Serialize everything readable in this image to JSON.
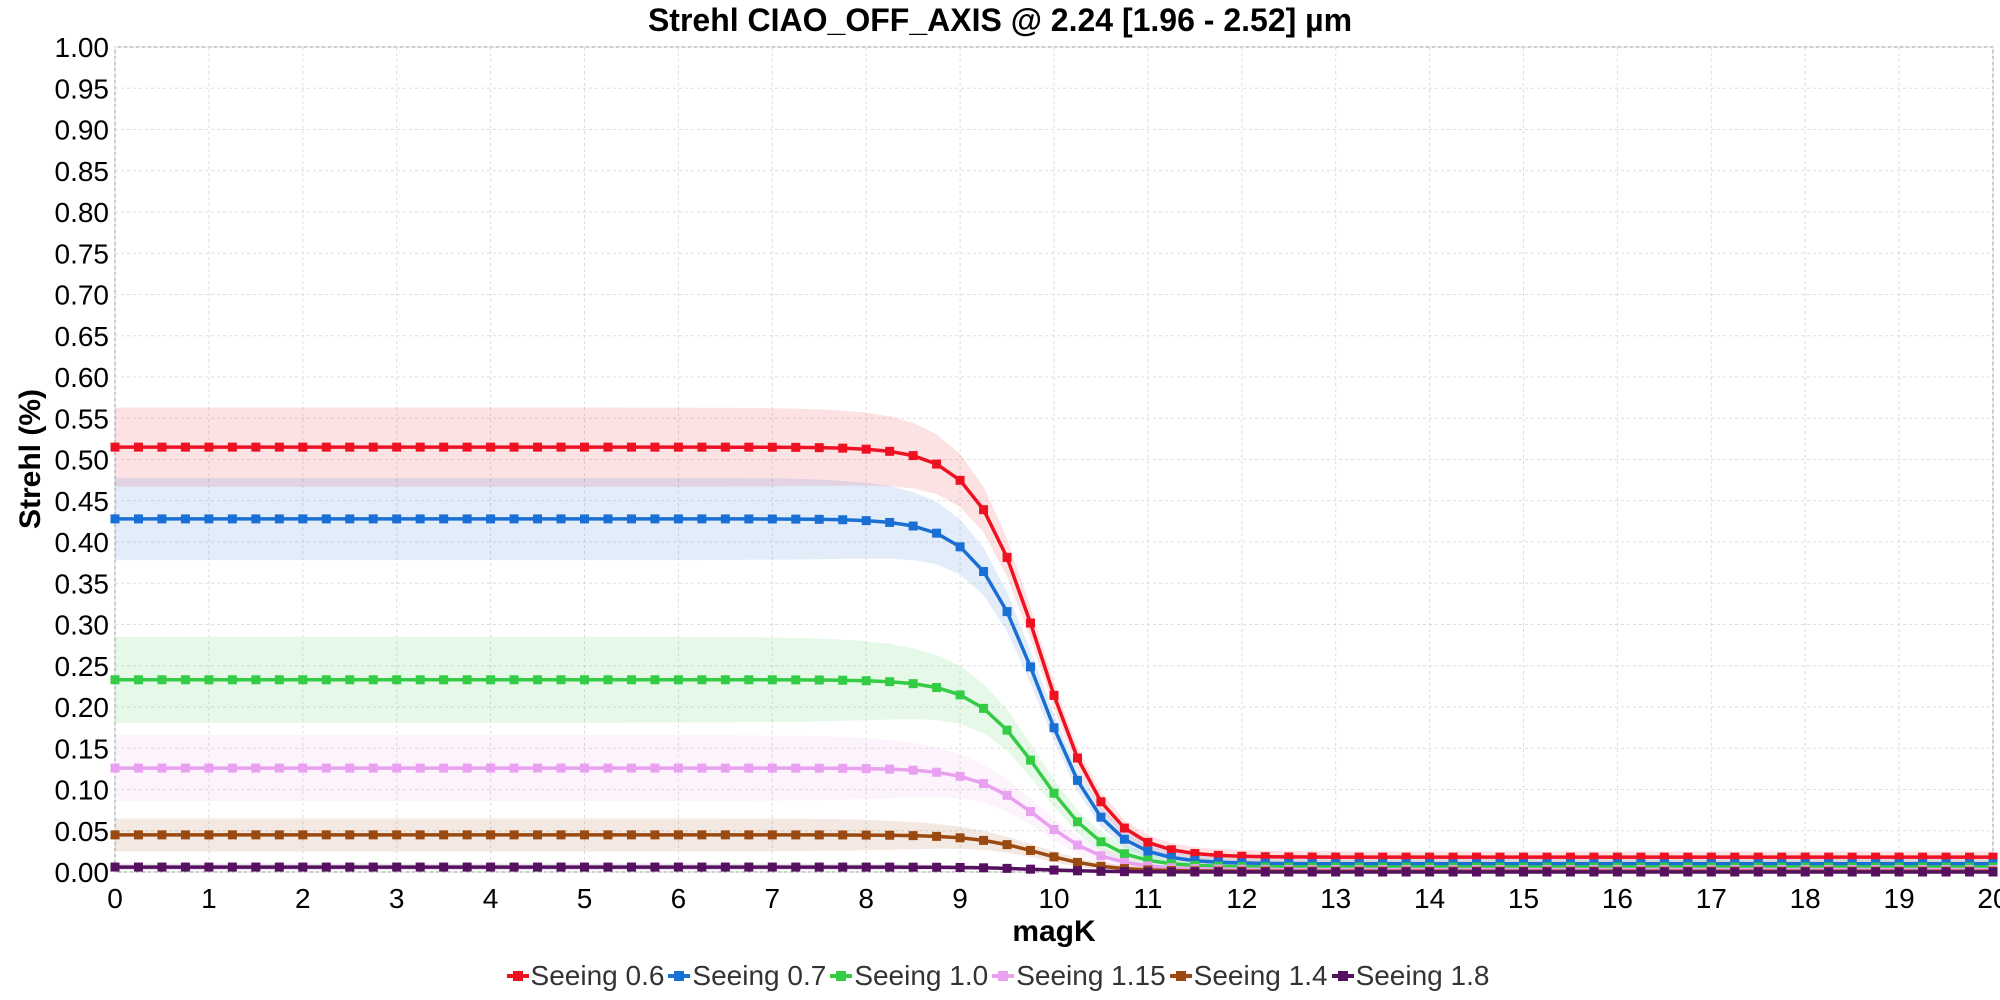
{
  "chart_data": {
    "type": "line",
    "title": "Strehl CIAO_OFF_AXIS @ 2.24 [1.96 - 2.52] µm",
    "xlabel": "magK",
    "ylabel": "Strehl (%)",
    "xlim": [
      0,
      20
    ],
    "ylim": [
      0,
      1.0
    ],
    "xticks": [
      "0",
      "1",
      "2",
      "3",
      "4",
      "5",
      "6",
      "7",
      "8",
      "9",
      "10",
      "11",
      "12",
      "13",
      "14",
      "15",
      "16",
      "17",
      "18",
      "19",
      "20"
    ],
    "yticks": [
      "0.00",
      "0.05",
      "0.10",
      "0.15",
      "0.20",
      "0.25",
      "0.30",
      "0.35",
      "0.40",
      "0.45",
      "0.50",
      "0.55",
      "0.60",
      "0.65",
      "0.70",
      "0.75",
      "0.80",
      "0.85",
      "0.90",
      "0.95",
      "1.00"
    ],
    "grid": true,
    "legend_position": "bottom",
    "series": [
      {
        "name": "Seeing 0.6",
        "color": "#ee1122",
        "plateau": 0.515,
        "floor": 0.018,
        "band": 0.048
      },
      {
        "name": "Seeing 0.7",
        "color": "#1a6fd4",
        "plateau": 0.428,
        "floor": 0.01,
        "band": 0.05
      },
      {
        "name": "Seeing 1.0",
        "color": "#33cc44",
        "plateau": 0.233,
        "floor": 0.006,
        "band": 0.052
      },
      {
        "name": "Seeing 1.15",
        "color": "#e9a0f0",
        "plateau": 0.126,
        "floor": 0.003,
        "band": 0.04
      },
      {
        "name": "Seeing 1.4",
        "color": "#9a4a10",
        "plateau": 0.045,
        "floor": 0.001,
        "band": 0.02
      },
      {
        "name": "Seeing 1.8",
        "color": "#551060",
        "plateau": 0.006,
        "floor": 0.0,
        "band": 0.004
      }
    ],
    "x_step": 0.25,
    "transition_center": 9.85,
    "transition_width": 0.35
  }
}
